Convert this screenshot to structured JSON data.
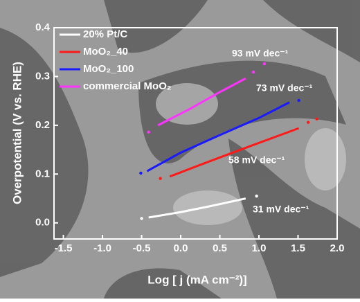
{
  "chart_data": {
    "type": "line",
    "xlabel": "Log [ j (mA cm⁻²)]",
    "ylabel": "Overpotential (V vs. RHE)",
    "xlim": [
      -1.62,
      2.0
    ],
    "ylim": [
      -0.033,
      0.4
    ],
    "xticks": [
      -1.5,
      {
        "value": -1,
        "label": "-1.0"
      },
      -0.5,
      {
        "value": 0,
        "label": "0.0"
      },
      0.5,
      {
        "value": 1,
        "label": "1.0"
      },
      1.5,
      {
        "value": 2,
        "label": "2.0"
      }
    ],
    "yticks": [
      {
        "value": 0,
        "label": "0.0"
      },
      0.1,
      0.2,
      0.3,
      0.4
    ],
    "legend": "upper left",
    "series": [
      {
        "name": "20% Pt/C",
        "color": "#ffffff",
        "x": [
          -0.5,
          -0.45,
          -0.41,
          0.0,
          0.4,
          0.83,
          0.9,
          0.97
        ],
        "values": [
          0.009,
          null,
          0.011,
          0.022,
          0.035,
          0.05,
          null,
          0.055
        ]
      },
      {
        "name": "MoO₂_40",
        "color": "#ff1a1a",
        "x": [
          -0.26,
          -0.2,
          -0.14,
          0.3,
          0.9,
          1.51,
          1.57,
          1.63,
          1.68,
          1.74
        ],
        "values": [
          0.091,
          null,
          0.095,
          0.122,
          0.158,
          0.194,
          null,
          0.206,
          null,
          0.213
        ]
      },
      {
        "name": "MoO₂_100",
        "color": "#1a1aff",
        "x": [
          -0.51,
          -0.47,
          -0.43,
          0.0,
          0.5,
          1.0,
          1.39,
          1.45,
          1.51
        ],
        "values": [
          0.102,
          null,
          0.106,
          0.144,
          0.18,
          0.215,
          0.247,
          null,
          0.251
        ]
      },
      {
        "name": "commercial MoO₂",
        "color": "#ff33ff",
        "x": [
          -0.41,
          -0.35,
          -0.29,
          0.1,
          0.5,
          0.83,
          0.88,
          0.93,
          1.0,
          1.07
        ],
        "values": [
          0.186,
          null,
          0.2,
          0.232,
          0.268,
          0.296,
          null,
          0.309,
          null,
          0.326
        ]
      }
    ],
    "annotations": [
      "93 mV dec⁻¹",
      "73 mV dec⁻¹",
      "58 mV dec⁻¹",
      "31 mV dec⁻¹"
    ]
  }
}
